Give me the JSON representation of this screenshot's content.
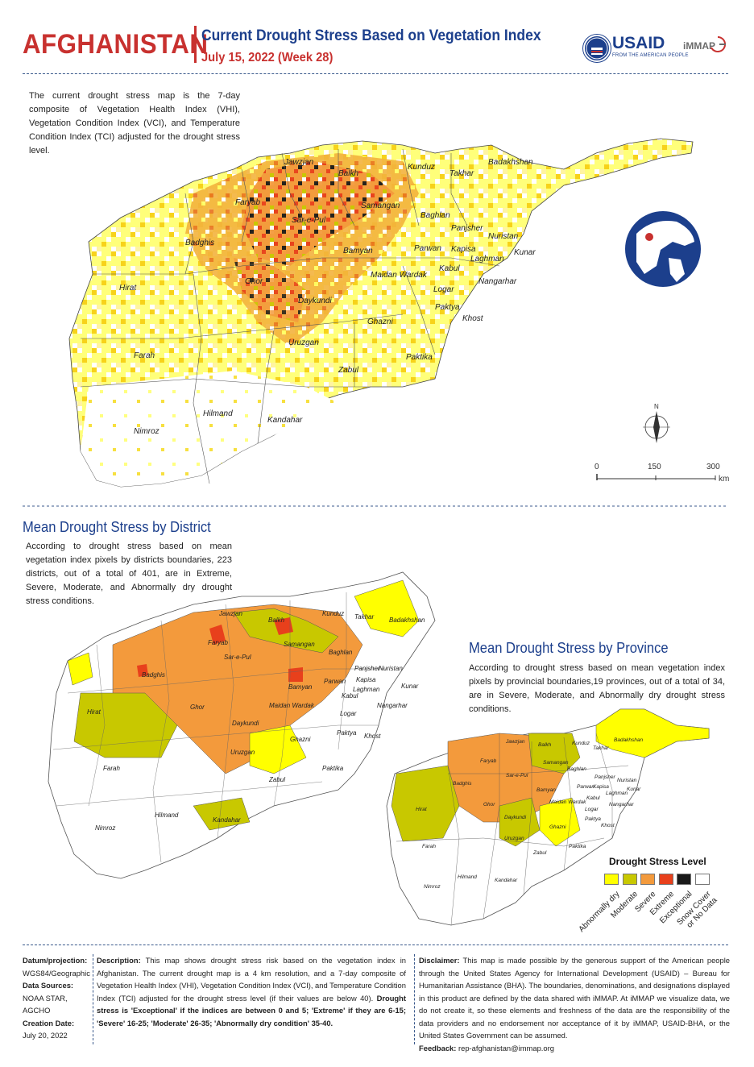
{
  "header": {
    "country": "AFGHANISTAN",
    "title": "Current Drought Stress Based on Vegetation Index",
    "date": "July 15, 2022 (Week 28)",
    "usaid": "USAID",
    "usaid_tagline": "FROM THE AMERICAN PEOPLE",
    "immap": "iMMAP"
  },
  "intro_text": "The current drought stress map is the 7-day composite of Vegetation Health Index (VHI), Vegetation Condition Index (VCI), and Temperature Condition Index (TCI) adjusted for the drought stress level.",
  "main_map": {
    "province_labels": [
      "Jawzjan",
      "Balkh",
      "Kunduz",
      "Takhar",
      "Badakhshan",
      "Faryab",
      "Samangan",
      "Baghlan",
      "Sar-e-Pul",
      "Panjsher",
      "Nuristan",
      "Badghis",
      "Bamyan",
      "Parwan",
      "Kapisa",
      "Kunar",
      "Maidan Wardak",
      "Laghman",
      "Kabul",
      "Nangarhar",
      "Hirat",
      "Ghor",
      "Logar",
      "Daykundi",
      "Paktya",
      "Khost",
      "Ghazni",
      "Uruzgan",
      "Farah",
      "Paktika",
      "Zabul",
      "Hilmand",
      "Kandahar",
      "Nimroz"
    ],
    "scale": {
      "ticks": [
        "0",
        "150",
        "300"
      ],
      "unit": "km"
    },
    "north": "N"
  },
  "district_section": {
    "heading": "Mean Drought Stress by District",
    "text": "According to drought stress based on mean vegetation index pixels by districts boundaries, 223 districts, out of a total of 401, are in Extreme, Severe, Moderate, and Abnormally dry drought stress conditions."
  },
  "province_section": {
    "heading": "Mean Drought Stress by Province",
    "text": "According to drought stress based on mean vegetation index pixels by provincial boundaries,19 provinces, out of a total of 34, are in Severe, Moderate, and Abnormally dry drought stress conditions."
  },
  "legend": {
    "title": "Drought Stress Level",
    "items": [
      {
        "label": "Abnormally dry",
        "color": "#ffff00"
      },
      {
        "label": "Moderate",
        "color": "#c8c800"
      },
      {
        "label": "Severe",
        "color": "#f39a3c"
      },
      {
        "label": "Extreme",
        "color": "#e8401c"
      },
      {
        "label": "Exceptional",
        "color": "#1a1a1a"
      },
      {
        "label": "Snow Cover or No Data",
        "color": "#ffffff"
      }
    ]
  },
  "footer": {
    "datum_label": "Datum/projection:",
    "datum_value": "WGS84/Geographic",
    "sources_label": "Data Sources:",
    "sources_value": "NOAA STAR, AGCHO",
    "created_label": "Creation Date:",
    "created_value": "July 20, 2022",
    "description_label": "Description:",
    "description_text": "This map shows drought stress risk based on the vegetation index in Afghanistan. The current drought map is a 4 km resolution, and a 7-day composite of Vegetation Health Index (VHI), Vegetation Condition Index (VCI), and Temperature Condition Index (TCI) adjusted for the drought stress level (if their values are below 40).",
    "description_bold": "Drought stress is 'Exceptional' if the indices are between 0 and 5; 'Extreme' if they are 6-15; 'Severe' 16-25; 'Moderate' 26-35; 'Abnormally dry condition' 35-40.",
    "disclaimer_label": "Disclaimer:",
    "disclaimer_text": "This map is made possible by the generous support of the American people through the United States Agency for International Development (USAID) – Bureau for Humanitarian Assistance (BHA). The boundaries, denominations, and designations displayed in this product are defined by the data shared with iMMAP. At iMMAP we visualize data, we do not create it, so these elements and freshness of the data are the responsibility of the data providers and no endorsement nor acceptance of it by iMMAP, USAID-BHA, or the United States Government can be assumed.",
    "feedback_label": "Feedback:",
    "feedback_value": "rep-afghanistan@immap.org"
  }
}
